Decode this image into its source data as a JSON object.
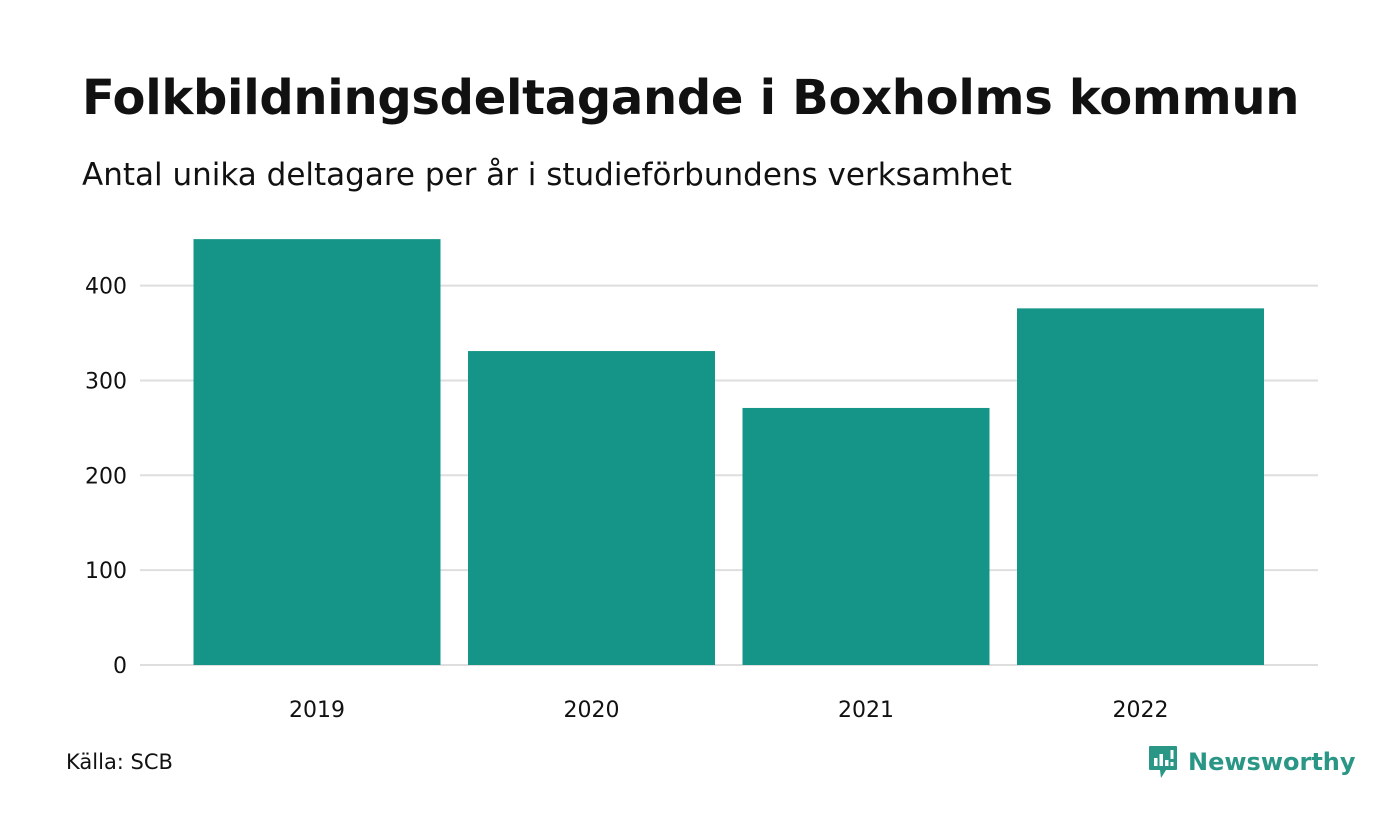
{
  "colors": {
    "bar": "#159588",
    "grid": "#dedede",
    "text": "#111111",
    "brand": "#2a9686"
  },
  "source": "Källa: SCB",
  "brand": {
    "name": "Newsworthy",
    "icon": "newsworthy-logo-icon"
  },
  "chart_data": {
    "type": "bar",
    "title": "Folkbildningsdeltagande i Boxholms kommun",
    "subtitle": "Antal unika deltagare per år i studieförbundens verksamhet",
    "categories": [
      "2019",
      "2020",
      "2021",
      "2022"
    ],
    "values": [
      449,
      331,
      271,
      376
    ],
    "ylim": [
      0,
      450
    ],
    "yticks": [
      0,
      100,
      200,
      300,
      400
    ],
    "xlabel": "",
    "ylabel": "",
    "grid": true,
    "legend": "none"
  }
}
